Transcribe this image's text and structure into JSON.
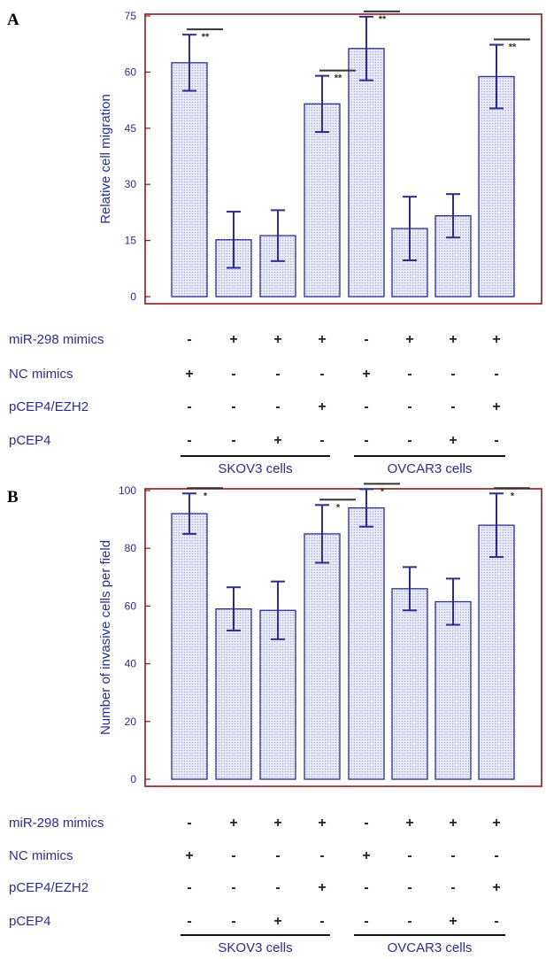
{
  "colors": {
    "bar_stroke": "#2b2d8f",
    "bar_fill": "#e4e6f5",
    "frame": "#8b1a1a",
    "text": "#2b2d8f"
  },
  "chart_data": [
    {
      "type": "bar",
      "panel_label": "A",
      "ylabel": "Relative cell migration",
      "ylim": [
        0,
        75
      ],
      "yticks": [
        "0",
        "15",
        "30",
        "45",
        "60",
        "75"
      ],
      "values": [
        62.5,
        15.2,
        16.3,
        51.5,
        66.3,
        18.2,
        21.6,
        58.8
      ],
      "errors": [
        7.5,
        7.5,
        6.8,
        7.5,
        8.5,
        8.5,
        5.8,
        8.5
      ],
      "significance": [
        {
          "bar": 0,
          "label": "**"
        },
        {
          "bar": 3,
          "label": "**"
        },
        {
          "bar": 4,
          "label": "**"
        },
        {
          "bar": 7,
          "label": "**"
        }
      ],
      "conditions": [
        {
          "name": "miR-298 mimics",
          "marks": [
            "-",
            "+",
            "+",
            "+",
            "-",
            "+",
            "+",
            "+"
          ]
        },
        {
          "name": "NC mimics",
          "marks": [
            "+",
            "-",
            "-",
            "-",
            "+",
            "-",
            "-",
            "-"
          ]
        },
        {
          "name": "pCEP4/EZH2",
          "marks": [
            "-",
            "-",
            "-",
            "+",
            "-",
            "-",
            "-",
            "+"
          ]
        },
        {
          "name": "pCEP4",
          "marks": [
            "-",
            "-",
            "+",
            "-",
            "-",
            "-",
            "+",
            "-"
          ]
        }
      ],
      "groups": [
        "SKOV3 cells",
        "OVCAR3 cells"
      ]
    },
    {
      "type": "bar",
      "panel_label": "B",
      "ylabel": "Number of invasive cells per field",
      "ylim": [
        0,
        100
      ],
      "yticks": [
        "0",
        "20",
        "40",
        "60",
        "80",
        "100"
      ],
      "values": [
        92,
        59,
        58.5,
        85,
        94,
        66,
        61.5,
        88
      ],
      "errors": [
        7,
        7.5,
        10,
        10,
        6.5,
        7.5,
        8,
        11
      ],
      "significance": [
        {
          "bar": 0,
          "label": "*"
        },
        {
          "bar": 3,
          "label": "*"
        },
        {
          "bar": 4,
          "label": "*"
        },
        {
          "bar": 7,
          "label": "*"
        }
      ],
      "conditions": [
        {
          "name": "miR-298 mimics",
          "marks": [
            "-",
            "+",
            "+",
            "+",
            "-",
            "+",
            "+",
            "+"
          ]
        },
        {
          "name": "NC mimics",
          "marks": [
            "+",
            "-",
            "-",
            "-",
            "+",
            "-",
            "-",
            "-"
          ]
        },
        {
          "name": "pCEP4/EZH2",
          "marks": [
            "-",
            "-",
            "-",
            "+",
            "-",
            "-",
            "-",
            "+"
          ]
        },
        {
          "name": "pCEP4",
          "marks": [
            "-",
            "-",
            "+",
            "-",
            "-",
            "-",
            "+",
            "-"
          ]
        }
      ],
      "groups": [
        "SKOV3 cells",
        "OVCAR3 cells"
      ]
    }
  ]
}
